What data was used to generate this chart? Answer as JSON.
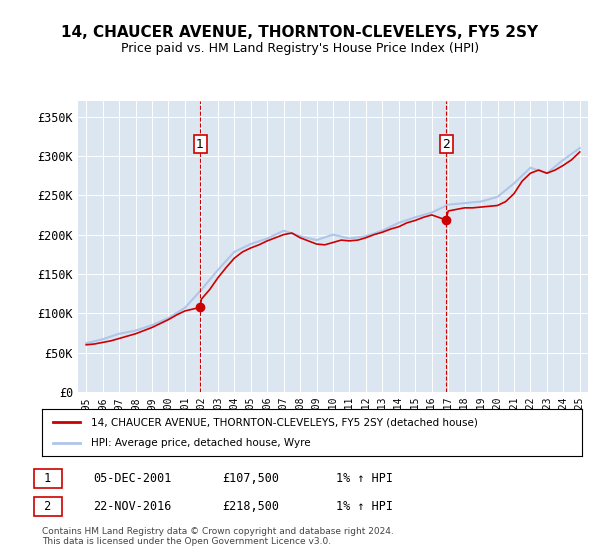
{
  "title": "14, CHAUCER AVENUE, THORNTON-CLEVELEYS, FY5 2SY",
  "subtitle": "Price paid vs. HM Land Registry's House Price Index (HPI)",
  "legend_line1": "14, CHAUCER AVENUE, THORNTON-CLEVELEYS, FY5 2SY (detached house)",
  "legend_line2": "HPI: Average price, detached house, Wyre",
  "marker1_label": "1",
  "marker1_date": "05-DEC-2001",
  "marker1_price": "£107,500",
  "marker1_hpi": "1% ↑ HPI",
  "marker1_year": 2001.92,
  "marker1_value": 107500,
  "marker2_label": "2",
  "marker2_date": "22-NOV-2016",
  "marker2_price": "£218,500",
  "marker2_hpi": "1% ↑ HPI",
  "marker2_year": 2016.89,
  "marker2_value": 218500,
  "xlim": [
    1994.5,
    2025.5
  ],
  "ylim": [
    0,
    370000
  ],
  "yticks": [
    0,
    50000,
    100000,
    150000,
    200000,
    250000,
    300000,
    350000
  ],
  "ytick_labels": [
    "£0",
    "£50K",
    "£100K",
    "£150K",
    "£200K",
    "£250K",
    "£300K",
    "£350K"
  ],
  "background_color": "#dce6f1",
  "plot_bg_color": "#dce6f1",
  "hpi_color": "#aec6e8",
  "price_color": "#cc0000",
  "vline_color": "#cc0000",
  "footer_text": "Contains HM Land Registry data © Crown copyright and database right 2024.\nThis data is licensed under the Open Government Licence v3.0.",
  "hpi_years": [
    1995,
    1996,
    1997,
    1998,
    1999,
    2000,
    2001,
    2002,
    2003,
    2004,
    2005,
    2006,
    2007,
    2008,
    2009,
    2010,
    2011,
    2012,
    2013,
    2014,
    2015,
    2016,
    2017,
    2018,
    2019,
    2020,
    2021,
    2022,
    2023,
    2024,
    2025
  ],
  "hpi_values": [
    62000,
    67000,
    74000,
    78000,
    85000,
    94000,
    107000,
    130000,
    155000,
    178000,
    188000,
    195000,
    205000,
    198000,
    193000,
    200000,
    195000,
    198000,
    205000,
    215000,
    222000,
    228000,
    238000,
    240000,
    242000,
    248000,
    265000,
    285000,
    278000,
    295000,
    310000
  ],
  "price_years": [
    1995,
    1995.5,
    1996,
    1996.5,
    1997,
    1997.5,
    1998,
    1998.5,
    1999,
    1999.5,
    2000,
    2000.5,
    2001,
    2001.92,
    2002,
    2002.5,
    2003,
    2003.5,
    2004,
    2004.5,
    2005,
    2005.5,
    2006,
    2006.5,
    2007,
    2007.5,
    2008,
    2008.5,
    2009,
    2009.5,
    2010,
    2010.5,
    2011,
    2011.5,
    2012,
    2012.5,
    2013,
    2013.5,
    2014,
    2014.5,
    2015,
    2015.5,
    2016,
    2016.89,
    2017,
    2017.5,
    2018,
    2018.5,
    2019,
    2019.5,
    2020,
    2020.5,
    2021,
    2021.5,
    2022,
    2022.5,
    2023,
    2023.5,
    2024,
    2024.5,
    2025
  ],
  "price_values": [
    60000,
    61000,
    63000,
    65000,
    68000,
    71000,
    74000,
    78000,
    82000,
    87000,
    92000,
    98000,
    103000,
    107500,
    118000,
    130000,
    145000,
    158000,
    170000,
    178000,
    183000,
    187000,
    192000,
    196000,
    200000,
    202000,
    196000,
    192000,
    188000,
    187000,
    190000,
    193000,
    192000,
    193000,
    196000,
    200000,
    203000,
    207000,
    210000,
    215000,
    218000,
    222000,
    225000,
    218500,
    230000,
    232000,
    234000,
    234000,
    235000,
    236000,
    237000,
    242000,
    252000,
    268000,
    278000,
    282000,
    278000,
    282000,
    288000,
    295000,
    305000
  ]
}
